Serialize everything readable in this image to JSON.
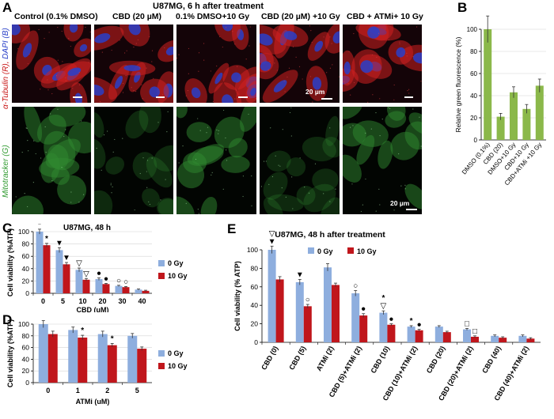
{
  "panels": {
    "A": "A",
    "B": "B",
    "C": "C",
    "D": "D",
    "E": "E"
  },
  "panelA": {
    "title": "U87MG, 6  h after treatment",
    "columns": [
      "Control (0.1% DMSO)",
      "CBD (20 µM)",
      "0.1% DMSO+10 Gy",
      "CBD (20 µM) +10 Gy",
      "CBD + ATMi+ 10 Gy"
    ],
    "row1_label_parts": [
      "α-Tubulin (R),",
      "DAPI (B)"
    ],
    "row2_label": "Mitotracker (G)",
    "scale_label": "20 µm",
    "colors": {
      "tubulin": "#d02020",
      "dapi": "#2a40c8",
      "mito": "#2f8a2f"
    }
  },
  "chart_data": [
    {
      "id": "B",
      "type": "bar",
      "title": "",
      "ylabel": "Relative green fluorescence (%)",
      "ylim": [
        0,
        100
      ],
      "yticks": [
        0,
        20,
        40,
        60,
        80,
        100
      ],
      "categories": [
        "DMSO (0.1%)",
        "CBD (20)",
        "DMSO+10 Gy",
        "CBD+10 Gy",
        "CBD+ATMi +10 Gy"
      ],
      "values": [
        100,
        21,
        43,
        28,
        49
      ],
      "errors": [
        12,
        3,
        5,
        4,
        6
      ],
      "color": "#8bb84a"
    },
    {
      "id": "C",
      "type": "bar",
      "title": "U87MG,  48 h",
      "ylabel": "Cell viability (%ATP)",
      "xlabel": "CBD (uM)",
      "ylim": [
        0,
        100
      ],
      "yticks": [
        0,
        20,
        40,
        60,
        80,
        100
      ],
      "categories": [
        "0",
        "5",
        "10",
        "20",
        "30",
        "40"
      ],
      "series": [
        {
          "name": "0 Gy",
          "color": "#8eaede",
          "values": [
            100,
            70,
            38,
            23,
            12,
            6
          ],
          "errors": [
            4,
            4,
            3,
            2,
            1,
            1
          ]
        },
        {
          "name": "10 Gy",
          "color": "#c0161c",
          "values": [
            78,
            47,
            22,
            15,
            10,
            4
          ],
          "errors": [
            3,
            3,
            2,
            1,
            1,
            1
          ]
        }
      ],
      "markers": [
        {
          "cat": 0,
          "s": 0,
          "sym": "*"
        },
        {
          "cat": 0,
          "s": 1,
          "sym": "*"
        },
        {
          "cat": 1,
          "s": 0,
          "sym": "▼"
        },
        {
          "cat": 1,
          "s": 1,
          "sym": "▼"
        },
        {
          "cat": 2,
          "s": 0,
          "sym": "▽"
        },
        {
          "cat": 2,
          "s": 1,
          "sym": "▽"
        },
        {
          "cat": 3,
          "s": 0,
          "sym": "●"
        },
        {
          "cat": 3,
          "s": 1,
          "sym": "●"
        },
        {
          "cat": 4,
          "s": 0,
          "sym": "○"
        },
        {
          "cat": 4,
          "s": 1,
          "sym": "○"
        }
      ],
      "legend": "right"
    },
    {
      "id": "D",
      "type": "bar",
      "title": "",
      "ylabel": "Cell viability (%ATP)",
      "xlabel": "ATMi (uM)",
      "ylim": [
        0,
        100
      ],
      "yticks": [
        0,
        20,
        40,
        60,
        80,
        100
      ],
      "categories": [
        "0",
        "1",
        "2",
        "5"
      ],
      "series": [
        {
          "name": "0 Gy",
          "color": "#8eaede",
          "values": [
            100,
            90,
            83,
            80
          ],
          "errors": [
            6,
            5,
            5,
            4
          ]
        },
        {
          "name": "10 Gy",
          "color": "#c0161c",
          "values": [
            83,
            77,
            64,
            58
          ],
          "errors": [
            5,
            4,
            3,
            3
          ]
        }
      ],
      "markers": [
        {
          "cat": 1,
          "s": 1,
          "sym": "*"
        },
        {
          "cat": 2,
          "s": 1,
          "sym": "*"
        }
      ],
      "legend": "right"
    },
    {
      "id": "E",
      "type": "bar",
      "title": "U87MG, 48 h after treatment",
      "ylabel": "Cell viability (% ATP)",
      "ylim": [
        0,
        100
      ],
      "yticks": [
        0,
        20,
        40,
        60,
        80,
        100
      ],
      "categories": [
        "CBD (0)",
        "CBD (5)",
        "ATMi (2)",
        "CBD (5)+ATMi (2)",
        "CBD (10)",
        "CBD (10)+ATMi (2)",
        "CBD (20)",
        "CBD (20)+ATMi (2)",
        "CBD (40)",
        "CBD (40)+ATMi (2)"
      ],
      "series": [
        {
          "name": "0 Gy",
          "color": "#8eaede",
          "values": [
            100,
            65,
            81,
            53,
            32,
            17,
            17,
            14,
            7,
            7
          ],
          "errors": [
            4,
            3,
            4,
            3,
            2,
            1,
            1,
            1,
            1,
            1
          ]
        },
        {
          "name": "10 Gy",
          "color": "#c0161c",
          "values": [
            68,
            39,
            62,
            29,
            19,
            13,
            11,
            6,
            5,
            4
          ],
          "errors": [
            3,
            2,
            2,
            2,
            1,
            1,
            1,
            1,
            1,
            1
          ]
        }
      ],
      "markers": [
        {
          "cat": 0,
          "s": 0,
          "sym": "▼"
        },
        {
          "cat": 0,
          "s": 0,
          "sym": "▽",
          "stack": 1
        },
        {
          "cat": 1,
          "s": 0,
          "sym": "▼"
        },
        {
          "cat": 1,
          "s": 1,
          "sym": "○"
        },
        {
          "cat": 3,
          "s": 0,
          "sym": "○"
        },
        {
          "cat": 3,
          "s": 1,
          "sym": "●"
        },
        {
          "cat": 4,
          "s": 0,
          "sym": "▽"
        },
        {
          "cat": 4,
          "s": 0,
          "sym": "*",
          "stack": 1
        },
        {
          "cat": 4,
          "s": 1,
          "sym": "●"
        },
        {
          "cat": 5,
          "s": 0,
          "sym": "*"
        },
        {
          "cat": 5,
          "s": 1,
          "sym": "●"
        },
        {
          "cat": 7,
          "s": 0,
          "sym": "□"
        },
        {
          "cat": 7,
          "s": 1,
          "sym": "□"
        }
      ],
      "legend": "top"
    }
  ]
}
